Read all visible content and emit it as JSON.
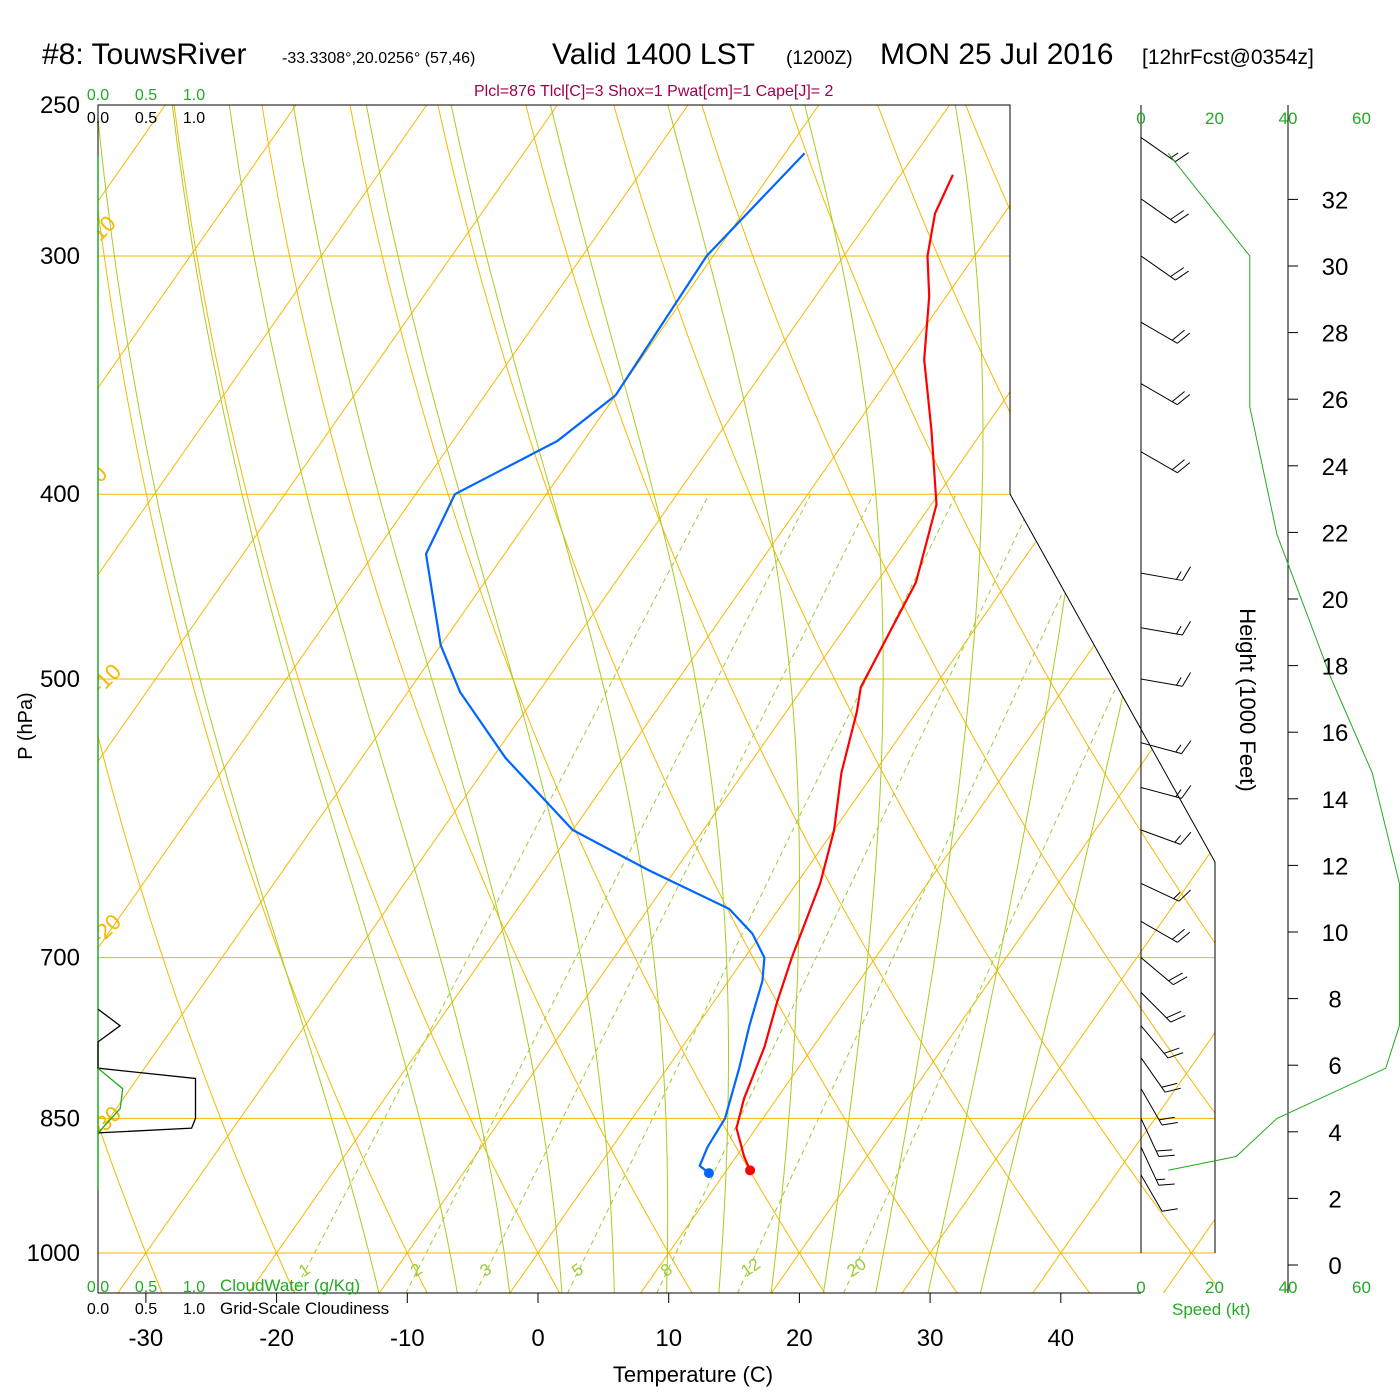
{
  "header": {
    "title": "#8: TouwsRiver",
    "coords": "-33.3308°,20.0256° (57,46)",
    "valid": "Valid 1400 LST",
    "valid_z": "(1200Z)",
    "date": "MON 25 Jul 2016",
    "forecast": "[12hrFcst@0354z]",
    "stats": "Plcl=876 Tlcl[C]=3 Shox=1 Pwat[cm]=1 Cape[J]= 2"
  },
  "labels": {
    "pressure_axis": "P (hPa)",
    "temperature_axis": "Temperature (C)",
    "height_axis": "Height (1000 Feet)",
    "speed_axis": "Speed (kt)",
    "cloudwater": "CloudWater (g/Kg)",
    "cloudiness": "Grid-Scale Cloudiness"
  },
  "colors": {
    "isobar": "#f5b800",
    "isotherm": "#f5b800",
    "dry_adiabat": "#f5b800",
    "moist_adiabat": "#a8cc20",
    "mixing_ratio": "#9acd32",
    "temperature": "#ff0000",
    "dewpoint": "#0066ff",
    "green_text": "#22aa22",
    "stats_text": "#a0004a"
  },
  "chart_data": {
    "type": "skew-t",
    "pressure_ticks": [
      250,
      300,
      400,
      500,
      700,
      850,
      1000
    ],
    "temperature_ticks": [
      -30,
      -20,
      -10,
      0,
      10,
      20,
      30,
      40
    ],
    "height_ticks": [
      0,
      2,
      4,
      6,
      8,
      10,
      12,
      14,
      16,
      18,
      20,
      22,
      24,
      26,
      28,
      30,
      32
    ],
    "speed_ticks": [
      0,
      20,
      40,
      60
    ],
    "cloud_scale_ticks": [
      "0.0",
      "0.5",
      "1.0"
    ],
    "isotherm_labels": [
      {
        "text": "10",
        "t": -10,
        "p": 295
      },
      {
        "text": "0",
        "t": 0,
        "p": 395
      },
      {
        "text": "-10",
        "t": -10,
        "p": 510
      },
      {
        "text": "-20",
        "t": -20,
        "p": 690
      },
      {
        "text": "-30",
        "t": -30,
        "p": 870
      },
      {
        "text": "0",
        "t": 0,
        "p": 340
      },
      {
        "text": "10",
        "t": 10,
        "p": 405
      },
      {
        "text": "20",
        "t": 20,
        "p": 495
      },
      {
        "text": "30",
        "t": 30,
        "p": 575
      }
    ],
    "mixing_ratio_labels": [
      "1",
      "2",
      "3",
      "5",
      "8",
      "12",
      "20"
    ],
    "mixing_ratios": [
      1,
      2,
      3,
      5,
      8,
      12,
      20
    ],
    "temperature_profile": [
      {
        "p": 905,
        "t": 11.8
      },
      {
        "p": 890,
        "t": 10.6
      },
      {
        "p": 860,
        "t": 8.5
      },
      {
        "p": 830,
        "t": 7.5
      },
      {
        "p": 780,
        "t": 6.3
      },
      {
        "p": 740,
        "t": 4.9
      },
      {
        "p": 700,
        "t": 3.6
      },
      {
        "p": 640,
        "t": 1.8
      },
      {
        "p": 600,
        "t": 0.0
      },
      {
        "p": 560,
        "t": -2.5
      },
      {
        "p": 520,
        "t": -4.6
      },
      {
        "p": 505,
        "t": -5.6
      },
      {
        "p": 470,
        "t": -6.4
      },
      {
        "p": 445,
        "t": -7.0
      },
      {
        "p": 405,
        "t": -9.6
      },
      {
        "p": 370,
        "t": -14.0
      },
      {
        "p": 340,
        "t": -18.3
      },
      {
        "p": 315,
        "t": -21.3
      },
      {
        "p": 300,
        "t": -23.6
      },
      {
        "p": 285,
        "t": -25.3
      },
      {
        "p": 272,
        "t": -26.0
      }
    ],
    "dewpoint_profile": [
      {
        "p": 908,
        "t": 8.8
      },
      {
        "p": 900,
        "t": 7.7
      },
      {
        "p": 880,
        "t": 7.3
      },
      {
        "p": 850,
        "t": 7.1
      },
      {
        "p": 800,
        "t": 5.5
      },
      {
        "p": 760,
        "t": 4.0
      },
      {
        "p": 720,
        "t": 2.6
      },
      {
        "p": 700,
        "t": 1.5
      },
      {
        "p": 680,
        "t": -0.7
      },
      {
        "p": 660,
        "t": -3.8
      },
      {
        "p": 630,
        "t": -12.0
      },
      {
        "p": 600,
        "t": -20.0
      },
      {
        "p": 550,
        "t": -29.0
      },
      {
        "p": 508,
        "t": -36.0
      },
      {
        "p": 480,
        "t": -40.0
      },
      {
        "p": 430,
        "t": -46.0
      },
      {
        "p": 400,
        "t": -47.0
      },
      {
        "p": 375,
        "t": -42.0
      },
      {
        "p": 355,
        "t": -40.0
      },
      {
        "p": 300,
        "t": -40.5
      },
      {
        "p": 265,
        "t": -38.5
      }
    ],
    "winds": [
      {
        "p": 910,
        "speed": 12,
        "dir": 330
      },
      {
        "p": 880,
        "speed": 15,
        "dir": 335
      },
      {
        "p": 850,
        "speed": 20,
        "dir": 335
      },
      {
        "p": 820,
        "speed": 20,
        "dir": 330
      },
      {
        "p": 790,
        "speed": 20,
        "dir": 325
      },
      {
        "p": 760,
        "speed": 20,
        "dir": 320
      },
      {
        "p": 730,
        "speed": 20,
        "dir": 315
      },
      {
        "p": 700,
        "speed": 20,
        "dir": 310
      },
      {
        "p": 670,
        "speed": 20,
        "dir": 300
      },
      {
        "p": 640,
        "speed": 15,
        "dir": 295
      },
      {
        "p": 600,
        "speed": 15,
        "dir": 290
      },
      {
        "p": 570,
        "speed": 15,
        "dir": 285
      },
      {
        "p": 540,
        "speed": 15,
        "dir": 285
      },
      {
        "p": 500,
        "speed": 15,
        "dir": 280
      },
      {
        "p": 470,
        "speed": 15,
        "dir": 280
      },
      {
        "p": 440,
        "speed": 15,
        "dir": 280
      },
      {
        "p": 380,
        "speed": 20,
        "dir": 300
      },
      {
        "p": 350,
        "speed": 20,
        "dir": 300
      },
      {
        "p": 325,
        "speed": 20,
        "dir": 300
      },
      {
        "p": 300,
        "speed": 20,
        "dir": 305
      },
      {
        "p": 280,
        "speed": 20,
        "dir": 305
      },
      {
        "p": 260,
        "speed": 15,
        "dir": 305
      }
    ],
    "speed_profile": [
      {
        "p": 905,
        "speed": 2
      },
      {
        "p": 890,
        "speed": 7
      },
      {
        "p": 850,
        "speed": 10
      },
      {
        "p": 800,
        "speed": 18
      },
      {
        "p": 760,
        "speed": 19
      },
      {
        "p": 700,
        "speed": 19
      },
      {
        "p": 640,
        "speed": 19
      },
      {
        "p": 560,
        "speed": 17
      },
      {
        "p": 500,
        "speed": 14
      },
      {
        "p": 420,
        "speed": 10
      },
      {
        "p": 360,
        "speed": 8
      },
      {
        "p": 300,
        "speed": 8
      },
      {
        "p": 265,
        "speed": 2
      }
    ],
    "cloudiness_profile": [
      {
        "p": 745,
        "v": 0.0
      },
      {
        "p": 760,
        "v": 0.17
      },
      {
        "p": 775,
        "v": 0.0
      },
      {
        "p": 800,
        "v": 0.0
      },
      {
        "p": 810,
        "v": 0.75
      },
      {
        "p": 850,
        "v": 0.75
      },
      {
        "p": 860,
        "v": 0.72
      },
      {
        "p": 865,
        "v": 0.0
      }
    ],
    "cloudwater_profile": [
      {
        "p": 800,
        "v": 0.0
      },
      {
        "p": 820,
        "v": 0.1
      },
      {
        "p": 840,
        "v": 0.09
      },
      {
        "p": 865,
        "v": 0.0
      }
    ]
  }
}
